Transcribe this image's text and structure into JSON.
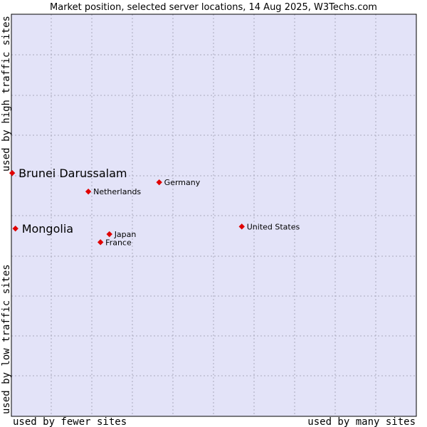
{
  "chart_data": {
    "type": "scatter",
    "title": "Market position, selected server locations, 14 Aug 2025, W3Techs.com",
    "xlabel_left": "used by fewer sites",
    "xlabel_right": "used by many sites",
    "ylabel_top": "used by high traffic sites",
    "ylabel_bottom": "used by low traffic sites",
    "xlim": [
      0,
      100
    ],
    "ylim": [
      0,
      100
    ],
    "grid": true,
    "colors": {
      "plot_bg": "#e3e3f8",
      "point": "#e00000",
      "grid": "#a8a8bc",
      "border": "#000000"
    },
    "points": [
      {
        "label": "Brunei Darussalam",
        "x": 0.2,
        "y": 60.5,
        "highlight": true
      },
      {
        "label": "Mongolia",
        "x": 1.0,
        "y": 46.7,
        "highlight": true
      },
      {
        "label": "Germany",
        "x": 36.5,
        "y": 58.2,
        "highlight": false
      },
      {
        "label": "Netherlands",
        "x": 19.0,
        "y": 55.9,
        "highlight": false
      },
      {
        "label": "United States",
        "x": 56.9,
        "y": 47.2,
        "highlight": false
      },
      {
        "label": "Japan",
        "x": 24.2,
        "y": 45.3,
        "highlight": false
      },
      {
        "label": "France",
        "x": 22.0,
        "y": 43.3,
        "highlight": false
      }
    ]
  }
}
